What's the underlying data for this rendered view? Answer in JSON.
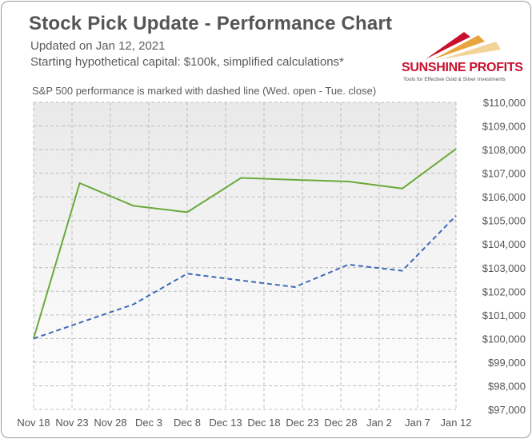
{
  "header": {
    "title": "Stock Pick Update - Performance Chart",
    "updated": "Updated on Jan 12, 2021",
    "capital_note": "Starting hypothetical capital: $100k, simplified calculations*",
    "sp_note": "S&P 500 performance is marked with dashed line (Wed. open - Tue. close)"
  },
  "logo": {
    "name": "SUNSHINE PROFITS",
    "tagline": "Tools for Effective Gold & Silver Investments",
    "colors": [
      "#c8102e",
      "#e8a33d",
      "#f2d39a"
    ]
  },
  "chart_data": {
    "type": "line",
    "title": "Stock Pick Update - Performance Chart",
    "xlabel": "",
    "ylabel": "",
    "x_ticks": [
      "Nov 18",
      "Nov 23",
      "Nov 28",
      "Dec 3",
      "Dec 8",
      "Dec 13",
      "Dec 18",
      "Dec 23",
      "Dec 28",
      "Jan 2",
      "Jan 7",
      "Jan 12"
    ],
    "y_ticks": [
      "$97,000",
      "$98,000",
      "$99,000",
      "$100,000",
      "$101,000",
      "$102,000",
      "$103,000",
      "$104,000",
      "$105,000",
      "$106,000",
      "$107,000",
      "$108,000",
      "$109,000",
      "$110,000"
    ],
    "xlim": [
      "2020-11-18",
      "2021-01-12"
    ],
    "ylim": [
      97000,
      110000
    ],
    "grid": true,
    "series": [
      {
        "style": "solid",
        "color": "#6aaa3c",
        "points": [
          {
            "x": "2020-11-18",
            "y": 100000
          },
          {
            "x": "2020-11-24",
            "y": 106580
          },
          {
            "x": "2020-12-01",
            "y": 105620
          },
          {
            "x": "2020-12-08",
            "y": 105350
          },
          {
            "x": "2020-12-15",
            "y": 106800
          },
          {
            "x": "2020-12-22",
            "y": 106720
          },
          {
            "x": "2020-12-29",
            "y": 106650
          },
          {
            "x": "2021-01-05",
            "y": 106350
          },
          {
            "x": "2021-01-12",
            "y": 108030
          }
        ]
      },
      {
        "style": "dashed",
        "color": "#3d6ab8",
        "points": [
          {
            "x": "2020-11-18",
            "y": 100000
          },
          {
            "x": "2020-12-01",
            "y": 101450
          },
          {
            "x": "2020-12-08",
            "y": 102750
          },
          {
            "x": "2020-12-22",
            "y": 102180
          },
          {
            "x": "2020-12-29",
            "y": 103130
          },
          {
            "x": "2021-01-05",
            "y": 102870
          },
          {
            "x": "2021-01-12",
            "y": 105200
          }
        ]
      }
    ]
  }
}
